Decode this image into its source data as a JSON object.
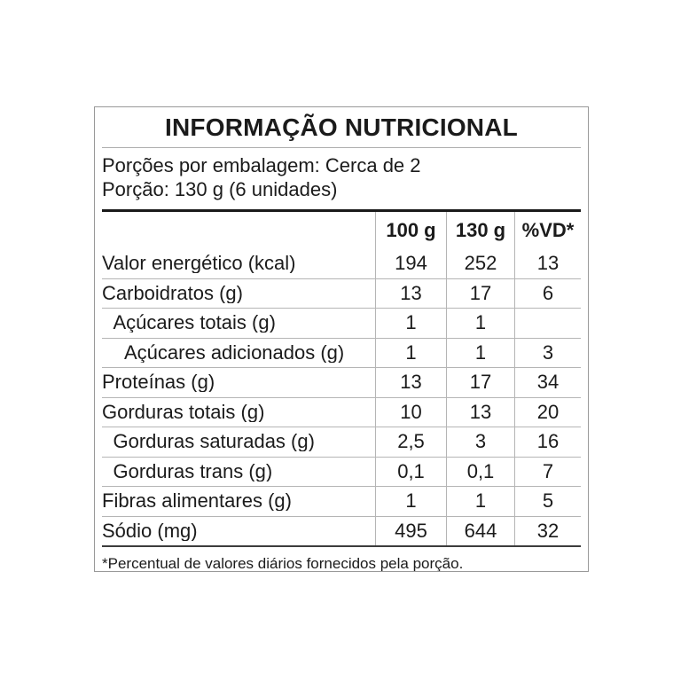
{
  "label": {
    "title": "INFORMAÇÃO NUTRICIONAL",
    "servings_per_package": "Porções por embalagem: Cerca de 2",
    "serving_size": "Porção: 130 g (6 unidades)",
    "columns": [
      "100 g",
      "130 g",
      "%VD*"
    ],
    "rows": [
      {
        "name": "Valor energético (kcal)",
        "indent": 0,
        "per_100g": "194",
        "per_130g": "252",
        "pct_vd": "13"
      },
      {
        "name": "Carboidratos (g)",
        "indent": 0,
        "per_100g": "13",
        "per_130g": "17",
        "pct_vd": "6"
      },
      {
        "name": "Açúcares totais (g)",
        "indent": 1,
        "per_100g": "1",
        "per_130g": "1",
        "pct_vd": ""
      },
      {
        "name": "Açúcares adicionados (g)",
        "indent": 2,
        "per_100g": "1",
        "per_130g": "1",
        "pct_vd": "3"
      },
      {
        "name": "Proteínas (g)",
        "indent": 0,
        "per_100g": "13",
        "per_130g": "17",
        "pct_vd": "34"
      },
      {
        "name": "Gorduras totais (g)",
        "indent": 0,
        "per_100g": "10",
        "per_130g": "13",
        "pct_vd": "20"
      },
      {
        "name": "Gorduras saturadas (g)",
        "indent": 1,
        "per_100g": "2,5",
        "per_130g": "3",
        "pct_vd": "16"
      },
      {
        "name": "Gorduras trans (g)",
        "indent": 1,
        "per_100g": "0,1",
        "per_130g": "0,1",
        "pct_vd": "7"
      },
      {
        "name": "Fibras alimentares (g)",
        "indent": 0,
        "per_100g": "1",
        "per_130g": "1",
        "pct_vd": "5"
      },
      {
        "name": "Sódio (mg)",
        "indent": 0,
        "per_100g": "495",
        "per_130g": "644",
        "pct_vd": "32"
      }
    ],
    "footnote": "*Percentual de valores diários fornecidos pela porção.",
    "colors": {
      "ink": "#1b1b1b",
      "grid_line": "#b5b5b5",
      "outer_border": "#999999",
      "heavy_rule": "#1a1a1a"
    }
  }
}
